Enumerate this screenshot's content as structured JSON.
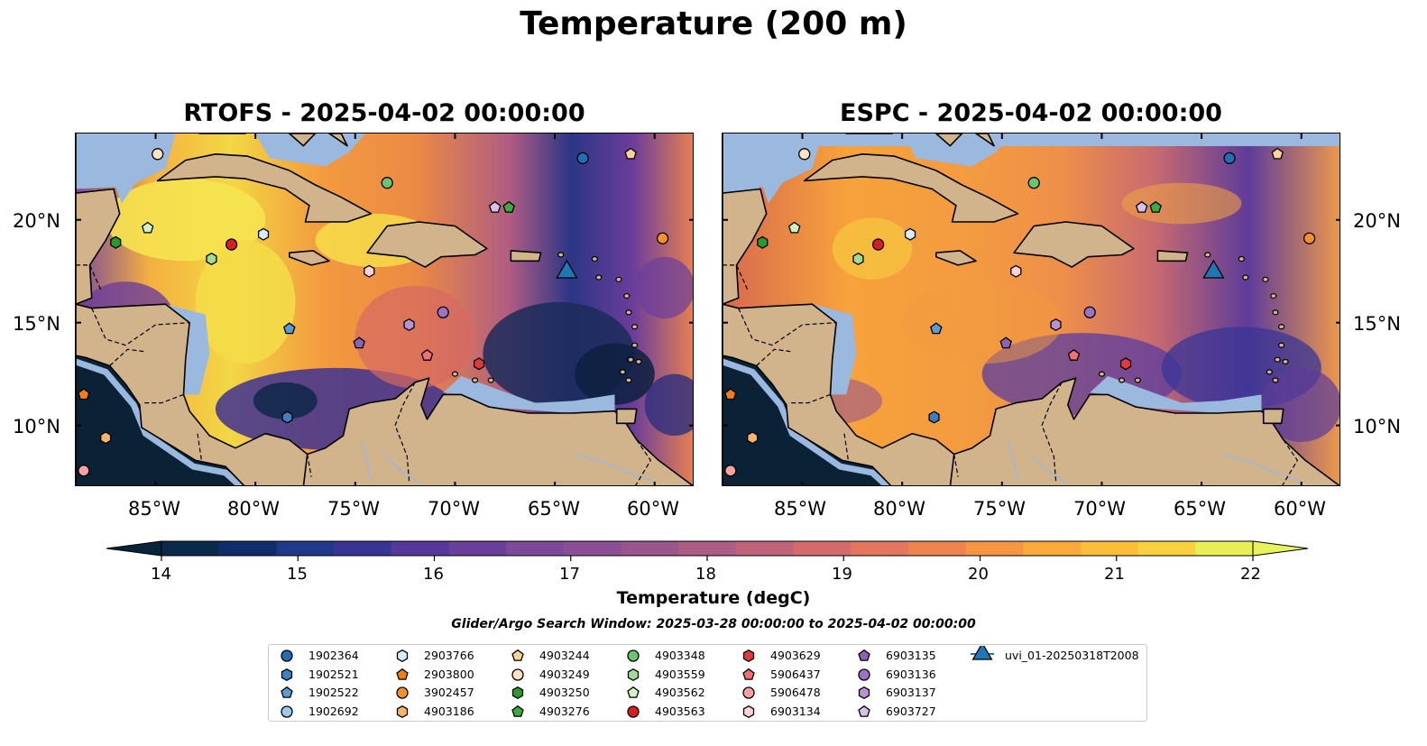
{
  "title": "Temperature (200 m)",
  "panels": [
    {
      "title": "RTOFS - 2025-04-02 00:00:00"
    },
    {
      "title": "ESPC - 2025-04-02 00:00:00"
    }
  ],
  "lat_ticks": [
    "20°N",
    "15°N",
    "10°N"
  ],
  "lon_ticks": [
    "85°W",
    "80°W",
    "75°W",
    "70°W",
    "65°W",
    "60°W"
  ],
  "colorbar": {
    "ticks": [
      "14",
      "15",
      "16",
      "17",
      "18",
      "19",
      "20",
      "21",
      "22"
    ],
    "label": "Temperature (degC)",
    "min": 14,
    "max": 22,
    "step": 0.5,
    "colors": [
      "#0b2a4a",
      "#102d6a",
      "#213888",
      "#3a3595",
      "#55389a",
      "#6a3f9b",
      "#7c4a98",
      "#8b5093",
      "#9a568c",
      "#ad5d83",
      "#c0637a",
      "#d26c6c",
      "#e2765f",
      "#ee8350",
      "#f59542",
      "#f9a93a",
      "#fbbd3a",
      "#f7d23e",
      "#eaef58"
    ],
    "under_color": "#08243b",
    "over_color": "#e9f25c"
  },
  "search_window": "Glider/Argo Search Window: 2025-03-28 00:00:00 to 2025-04-02 00:00:00",
  "legend": [
    {
      "id": "1902364",
      "marker": "circle",
      "color": "#1f6fb2"
    },
    {
      "id": "1902521",
      "marker": "hexagon",
      "color": "#3d7fbf"
    },
    {
      "id": "1902522",
      "marker": "pentagon",
      "color": "#5a9bd5"
    },
    {
      "id": "1902692",
      "marker": "circle",
      "color": "#9cc8ea"
    },
    {
      "id": "2903766",
      "marker": "hexagon",
      "color": "#d6ecfb"
    },
    {
      "id": "2903800",
      "marker": "pentagon",
      "color": "#f07f10"
    },
    {
      "id": "3902457",
      "marker": "circle",
      "color": "#f5902a"
    },
    {
      "id": "4903186",
      "marker": "hexagon",
      "color": "#f9b26a"
    },
    {
      "id": "4903244",
      "marker": "pentagon",
      "color": "#fcd29a"
    },
    {
      "id": "4903249",
      "marker": "circle",
      "color": "#fde3c4"
    },
    {
      "id": "4903250",
      "marker": "hexagon",
      "color": "#2a9a2a"
    },
    {
      "id": "4903276",
      "marker": "pentagon",
      "color": "#3caa3c"
    },
    {
      "id": "4903348",
      "marker": "circle",
      "color": "#6cc56c"
    },
    {
      "id": "4903559",
      "marker": "hexagon",
      "color": "#a2dc92"
    },
    {
      "id": "4903562",
      "marker": "pentagon",
      "color": "#d1f3c2"
    },
    {
      "id": "4903563",
      "marker": "circle",
      "color": "#d62020"
    },
    {
      "id": "4903629",
      "marker": "hexagon",
      "color": "#e03a3a"
    },
    {
      "id": "5906437",
      "marker": "pentagon",
      "color": "#ee7272"
    },
    {
      "id": "5906478",
      "marker": "circle",
      "color": "#f7a1a1"
    },
    {
      "id": "6903134",
      "marker": "hexagon",
      "color": "#fbd3d3"
    },
    {
      "id": "6903135",
      "marker": "pentagon",
      "color": "#8c62b5"
    },
    {
      "id": "6903136",
      "marker": "circle",
      "color": "#9a72c6"
    },
    {
      "id": "6903137",
      "marker": "hexagon",
      "color": "#b594d6"
    },
    {
      "id": "6903727",
      "marker": "pentagon",
      "color": "#d9c0ee"
    },
    {
      "id": "uvi_01-20250318T2008",
      "marker": "triangle",
      "color": "#1f77b4"
    }
  ],
  "map_extent": {
    "lon_min": -89,
    "lon_max": -58,
    "lat_min": 7,
    "lat_max": 24.2
  },
  "floats": [
    {
      "id": "1902364",
      "lon": -63.6,
      "lat": 23.0
    },
    {
      "id": "4903249",
      "lon": -84.9,
      "lat": 23.2
    },
    {
      "id": "4903244",
      "lon": -61.2,
      "lat": 23.2
    },
    {
      "id": "4903348",
      "lon": -73.4,
      "lat": 21.8
    },
    {
      "id": "6903727",
      "lon": -68.0,
      "lat": 20.6
    },
    {
      "id": "4903276",
      "lon": -67.3,
      "lat": 20.6
    },
    {
      "id": "4903562",
      "lon": -85.4,
      "lat": 19.6
    },
    {
      "id": "2903766",
      "lon": -79.6,
      "lat": 19.3
    },
    {
      "id": "4903250",
      "lon": -87.0,
      "lat": 18.9
    },
    {
      "id": "4903563",
      "lon": -81.2,
      "lat": 18.8
    },
    {
      "id": "3902457",
      "lon": -59.6,
      "lat": 19.1
    },
    {
      "id": "4903559",
      "lon": -82.2,
      "lat": 18.1
    },
    {
      "id": "6903134",
      "lon": -74.3,
      "lat": 17.5
    },
    {
      "id": "uvi_01-20250318T2008",
      "lon": -64.4,
      "lat": 17.6
    },
    {
      "id": "6903136",
      "lon": -70.6,
      "lat": 15.5
    },
    {
      "id": "6903137",
      "lon": -72.3,
      "lat": 14.9
    },
    {
      "id": "1902522",
      "lon": -78.3,
      "lat": 14.7
    },
    {
      "id": "6903135",
      "lon": -74.8,
      "lat": 14.0
    },
    {
      "id": "5906437",
      "lon": -71.4,
      "lat": 13.4
    },
    {
      "id": "4903629",
      "lon": -68.8,
      "lat": 13.0
    },
    {
      "id": "1902521",
      "lon": -78.4,
      "lat": 10.4
    },
    {
      "id": "2903800",
      "lon": -88.6,
      "lat": 11.5
    },
    {
      "id": "4903186",
      "lon": -87.5,
      "lat": 9.4
    },
    {
      "id": "5906478",
      "lon": -88.6,
      "lat": 7.8
    }
  ]
}
